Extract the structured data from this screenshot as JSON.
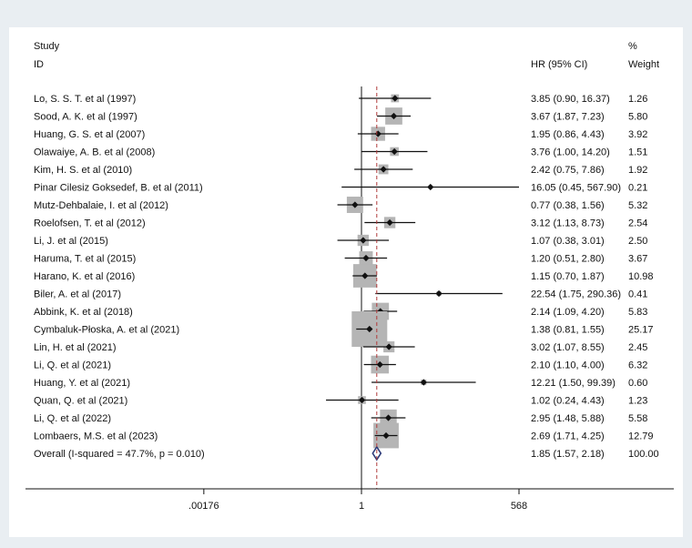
{
  "chart_data": {
    "type": "forest",
    "header": {
      "study_line1": "Study",
      "study_line2": "ID",
      "ci_label": "HR (95% CI)",
      "weight_line1": "%",
      "weight_line2": "Weight"
    },
    "axis": {
      "scale": "log",
      "ticks": [
        {
          "value": 0.00176,
          "label": ".00176"
        },
        {
          "value": 1,
          "label": "1"
        },
        {
          "value": 568,
          "label": "568"
        }
      ],
      "null_value": 1,
      "overall_value": 1.85
    },
    "studies": [
      {
        "name": "Lo, S. S. T. et al (1997)",
        "hr": 3.85,
        "lo": 0.9,
        "hi": 16.37,
        "ci_text": "3.85 (0.90, 16.37)",
        "weight": 1.26,
        "weight_text": "1.26"
      },
      {
        "name": "Sood, A. K. et al (1997)",
        "hr": 3.67,
        "lo": 1.87,
        "hi": 7.23,
        "ci_text": "3.67 (1.87, 7.23)",
        "weight": 5.8,
        "weight_text": "5.80"
      },
      {
        "name": "Huang, G. S. et al (2007)",
        "hr": 1.95,
        "lo": 0.86,
        "hi": 4.43,
        "ci_text": "1.95 (0.86, 4.43)",
        "weight": 3.92,
        "weight_text": "3.92"
      },
      {
        "name": "Olawaiye, A. B. et al (2008)",
        "hr": 3.76,
        "lo": 1.0,
        "hi": 14.2,
        "ci_text": "3.76 (1.00, 14.20)",
        "weight": 1.51,
        "weight_text": "1.51"
      },
      {
        "name": "Kim, H. S. et al (2010)",
        "hr": 2.42,
        "lo": 0.75,
        "hi": 7.86,
        "ci_text": "2.42 (0.75, 7.86)",
        "weight": 1.92,
        "weight_text": "1.92"
      },
      {
        "name": "Pinar Cilesiz Goksedef, B. et al (2011)",
        "hr": 16.05,
        "lo": 0.45,
        "hi": 567.9,
        "ci_text": "16.05 (0.45, 567.90)",
        "weight": 0.21,
        "weight_text": "0.21"
      },
      {
        "name": "Mutz-Dehbalaie, I. et al (2012)",
        "hr": 0.77,
        "lo": 0.38,
        "hi": 1.56,
        "ci_text": "0.77 (0.38, 1.56)",
        "weight": 5.32,
        "weight_text": "5.32"
      },
      {
        "name": "Roelofsen, T. et al (2012)",
        "hr": 3.12,
        "lo": 1.13,
        "hi": 8.73,
        "ci_text": "3.12 (1.13, 8.73)",
        "weight": 2.54,
        "weight_text": "2.54"
      },
      {
        "name": "Li, J. et al (2015)",
        "hr": 1.07,
        "lo": 0.38,
        "hi": 3.01,
        "ci_text": "1.07 (0.38, 3.01)",
        "weight": 2.5,
        "weight_text": "2.50"
      },
      {
        "name": "Haruma, T. et al (2015)",
        "hr": 1.2,
        "lo": 0.51,
        "hi": 2.8,
        "ci_text": "1.20 (0.51, 2.80)",
        "weight": 3.67,
        "weight_text": "3.67"
      },
      {
        "name": "Harano, K. et al (2016)",
        "hr": 1.15,
        "lo": 0.7,
        "hi": 1.87,
        "ci_text": "1.15 (0.70, 1.87)",
        "weight": 10.98,
        "weight_text": "10.98"
      },
      {
        "name": "Biler, A. et al  (2017)",
        "hr": 22.54,
        "lo": 1.75,
        "hi": 290.36,
        "ci_text": "22.54 (1.75, 290.36)",
        "weight": 0.41,
        "weight_text": "0.41"
      },
      {
        "name": "Abbink, K. et al (2018)",
        "hr": 2.14,
        "lo": 1.09,
        "hi": 4.2,
        "ci_text": "2.14 (1.09, 4.20)",
        "weight": 5.83,
        "weight_text": "5.83"
      },
      {
        "name": "Cymbaluk-Płoska, A. et al (2021)",
        "hr": 1.38,
        "lo": 0.81,
        "hi": 1.55,
        "ci_text": "1.38 (0.81, 1.55)",
        "weight": 25.17,
        "weight_text": "25.17"
      },
      {
        "name": "Lin, H. et al (2021)",
        "hr": 3.02,
        "lo": 1.07,
        "hi": 8.55,
        "ci_text": "3.02 (1.07, 8.55)",
        "weight": 2.45,
        "weight_text": "2.45"
      },
      {
        "name": "Li, Q. et al (2021)",
        "hr": 2.1,
        "lo": 1.1,
        "hi": 4.0,
        "ci_text": "2.10 (1.10, 4.00)",
        "weight": 6.32,
        "weight_text": "6.32"
      },
      {
        "name": "Huang, Y. et al (2021)",
        "hr": 12.21,
        "lo": 1.5,
        "hi": 99.39,
        "ci_text": "12.21 (1.50, 99.39)",
        "weight": 0.6,
        "weight_text": "0.60"
      },
      {
        "name": "Quan, Q. et al (2021)",
        "hr": 1.02,
        "lo": 0.24,
        "hi": 4.43,
        "ci_text": "1.02 (0.24, 4.43)",
        "weight": 1.23,
        "weight_text": "1.23"
      },
      {
        "name": "Li, Q. et al (2022)",
        "hr": 2.95,
        "lo": 1.48,
        "hi": 5.88,
        "ci_text": "2.95 (1.48, 5.88)",
        "weight": 5.58,
        "weight_text": "5.58"
      },
      {
        "name": "Lombaers, M.S. et al (2023)",
        "hr": 2.69,
        "lo": 1.71,
        "hi": 4.25,
        "ci_text": "2.69 (1.71, 4.25)",
        "weight": 12.79,
        "weight_text": "12.79"
      }
    ],
    "overall": {
      "name": "Overall  (I-squared = 47.7%, p = 0.010)",
      "hr": 1.85,
      "lo": 1.57,
      "hi": 2.18,
      "ci_text": "1.85 (1.57, 2.18)",
      "weight_text": "100.00"
    },
    "colors": {
      "background": "#e9eef2",
      "panel": "#ffffff",
      "box": "#b5b5b5",
      "point": "#111111",
      "ci_line": "#111111",
      "dashed_line": "#b03a3a",
      "diamond": "#2c3a78"
    }
  }
}
